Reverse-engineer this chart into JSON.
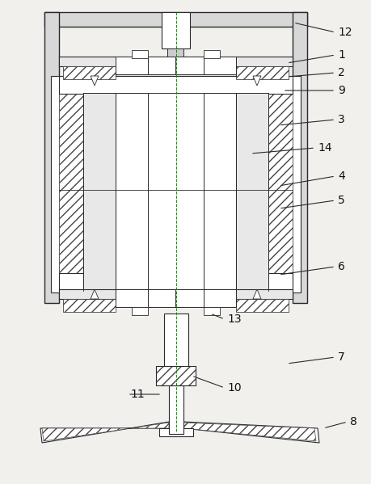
{
  "bg_color": "#f2f0ed",
  "lc": "#2a2a2a",
  "fig_width": 4.6,
  "fig_height": 5.99,
  "dpi": 100,
  "labels": [
    [
      12,
      363,
      28,
      415,
      40
    ],
    [
      1,
      355,
      78,
      415,
      68
    ],
    [
      2,
      355,
      95,
      415,
      90
    ],
    [
      9,
      350,
      112,
      415,
      112
    ],
    [
      3,
      345,
      155,
      415,
      148
    ],
    [
      14,
      310,
      190,
      390,
      183
    ],
    [
      4,
      345,
      230,
      415,
      218
    ],
    [
      5,
      345,
      258,
      415,
      248
    ],
    [
      6,
      345,
      340,
      415,
      330
    ],
    [
      7,
      355,
      450,
      415,
      442
    ],
    [
      8,
      400,
      530,
      430,
      522
    ],
    [
      13,
      260,
      388,
      278,
      395
    ],
    [
      10,
      237,
      465,
      278,
      480
    ],
    [
      11,
      200,
      488,
      158,
      488
    ]
  ]
}
